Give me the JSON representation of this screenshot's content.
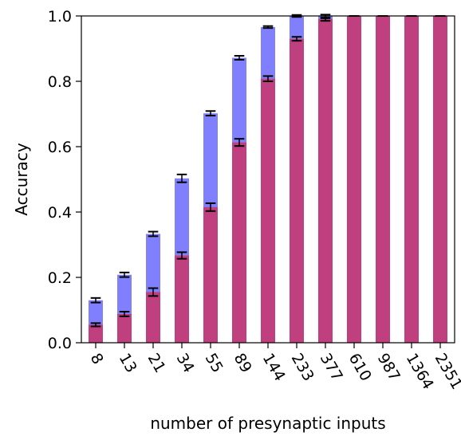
{
  "chart_data": {
    "type": "bar",
    "xlabel": "number of presynaptic inputs",
    "ylabel": "Accuracy",
    "ylim": [
      0,
      1.0
    ],
    "yticks": [
      "0.0",
      "0.2",
      "0.4",
      "0.6",
      "0.8",
      "1.0"
    ],
    "categories": [
      "8",
      "13",
      "21",
      "34",
      "55",
      "89",
      "144",
      "233",
      "377",
      "610",
      "987",
      "1364",
      "2351"
    ],
    "grid": false,
    "legend": "none",
    "series": [
      {
        "color": "#8080ff",
        "values": [
          0.13,
          0.208,
          0.333,
          0.503,
          0.702,
          0.872,
          0.966,
          1.0,
          1.0,
          1.0,
          1.0,
          1.0,
          1.0
        ],
        "errors": [
          0.007,
          0.007,
          0.007,
          0.012,
          0.007,
          0.006,
          0.003,
          0.003,
          0.007,
          0.0,
          0.0,
          0.0,
          0.0
        ]
      },
      {
        "color": "#c0407f",
        "values": [
          0.055,
          0.088,
          0.155,
          0.267,
          0.415,
          0.613,
          0.808,
          0.93,
          0.99,
          1.0,
          1.0,
          1.0,
          1.0
        ],
        "errors": [
          0.005,
          0.007,
          0.012,
          0.01,
          0.012,
          0.011,
          0.008,
          0.006,
          0.005,
          0.0,
          0.0,
          0.0,
          0.0
        ]
      }
    ]
  }
}
